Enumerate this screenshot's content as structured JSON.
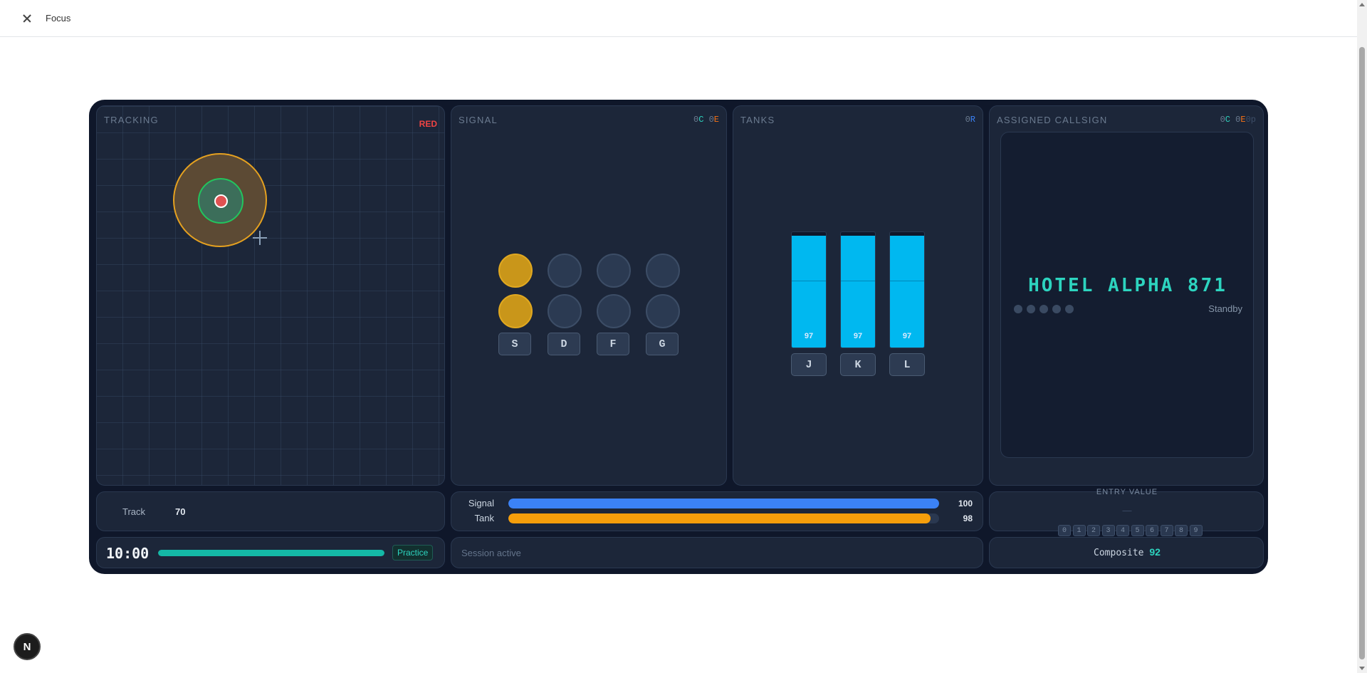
{
  "window": {
    "title": "Focus",
    "close_icon": "close-icon"
  },
  "badge": {
    "label": "N"
  },
  "tracking": {
    "title": "TRACKING",
    "status": "RED",
    "status_color": "#ef4444"
  },
  "signal": {
    "title": "SIGNAL",
    "tag": [
      "0",
      "C",
      " 0",
      "E"
    ],
    "lights_on_color": "#c9961a",
    "lights": [
      [
        true,
        false,
        false,
        false
      ],
      [
        true,
        false,
        false,
        false
      ]
    ],
    "keys": [
      "S",
      "D",
      "F",
      "G"
    ]
  },
  "tanks": {
    "title": "TANKS",
    "tag": [
      "0",
      "R"
    ],
    "fill_color": "#00b8f0",
    "items": [
      {
        "key": "J",
        "value": "97",
        "level": 0.97
      },
      {
        "key": "K",
        "value": "97",
        "level": 0.97
      },
      {
        "key": "L",
        "value": "97",
        "level": 0.97
      }
    ]
  },
  "callsign": {
    "title": "ASSIGNED CALLSIGN",
    "tag": [
      "0",
      "C",
      " 0",
      "E",
      "0p"
    ],
    "value": "HOTEL ALPHA 871",
    "status": "Standby"
  },
  "track_score": {
    "label": "Track",
    "value": "70"
  },
  "bars": [
    {
      "label": "Signal",
      "value": "100",
      "level": 1.0,
      "color": "#3b82f6"
    },
    {
      "label": "Tank",
      "value": "98",
      "level": 0.98,
      "color": "#f59e0b"
    }
  ],
  "entry": {
    "label": "ENTRY VALUE",
    "placeholder": "—",
    "digits": [
      "0",
      "1",
      "2",
      "3",
      "4",
      "5",
      "6",
      "7",
      "8",
      "9"
    ]
  },
  "timer": {
    "value": "10:00",
    "mode": "Practice",
    "progress": 1.0,
    "progress_color": "#14b8a6"
  },
  "status": {
    "text": "Session active"
  },
  "composite": {
    "label": "Composite",
    "value": "92"
  }
}
